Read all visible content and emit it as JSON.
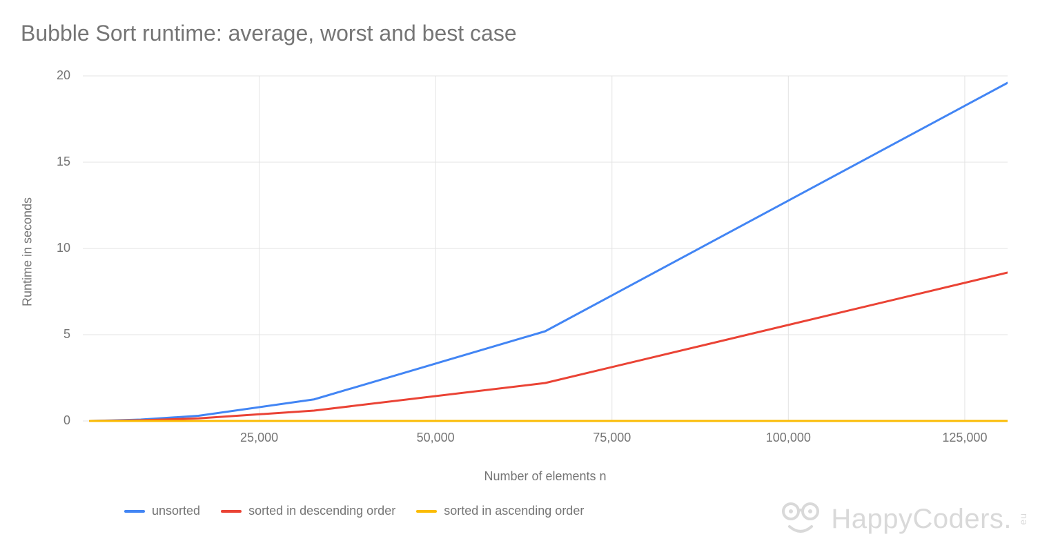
{
  "title": "Bubble Sort runtime: average, worst and best case",
  "chart": {
    "type": "line",
    "background_color": "#ffffff",
    "grid_color": "#e3e3e3",
    "axis_color": "#9e9e9e",
    "text_color": "#757575",
    "title_fontsize": 32,
    "tick_fontsize": 18,
    "axis_label_fontsize": 18,
    "legend_fontsize": 18,
    "line_width": 3,
    "x": {
      "label": "Number of elements n",
      "min": 0,
      "max": 131072,
      "ticks": [
        25000,
        50000,
        75000,
        100000,
        125000
      ],
      "tick_labels": [
        "25,000",
        "50,000",
        "75,000",
        "100,000",
        "125,000"
      ]
    },
    "y": {
      "label": "Runtime in seconds",
      "min": 0,
      "max": 20,
      "ticks": [
        0,
        5,
        10,
        15,
        20
      ],
      "tick_labels": [
        "0",
        "5",
        "10",
        "15",
        "20"
      ]
    },
    "series": [
      {
        "name": "unsorted",
        "color": "#4285f4",
        "x": [
          1024,
          2048,
          4096,
          8192,
          16384,
          32768,
          65536,
          131072
        ],
        "y": [
          0.0,
          0.01,
          0.03,
          0.08,
          0.3,
          1.25,
          5.2,
          19.6
        ]
      },
      {
        "name": "sorted in descending order",
        "color": "#ea4335",
        "x": [
          1024,
          2048,
          4096,
          8192,
          16384,
          32768,
          65536,
          131072
        ],
        "y": [
          0.0,
          0.005,
          0.015,
          0.04,
          0.15,
          0.6,
          2.2,
          8.6
        ]
      },
      {
        "name": "sorted in ascending order",
        "color": "#fbbc04",
        "x": [
          1024,
          2048,
          4096,
          8192,
          16384,
          32768,
          65536,
          131072
        ],
        "y": [
          0,
          0,
          0,
          0,
          0,
          0,
          0,
          0
        ]
      }
    ],
    "legend_position": "bottom-left"
  },
  "watermark": {
    "text": "HappyCoders.",
    "suffix": "eu",
    "color": "#d9d9d9"
  }
}
